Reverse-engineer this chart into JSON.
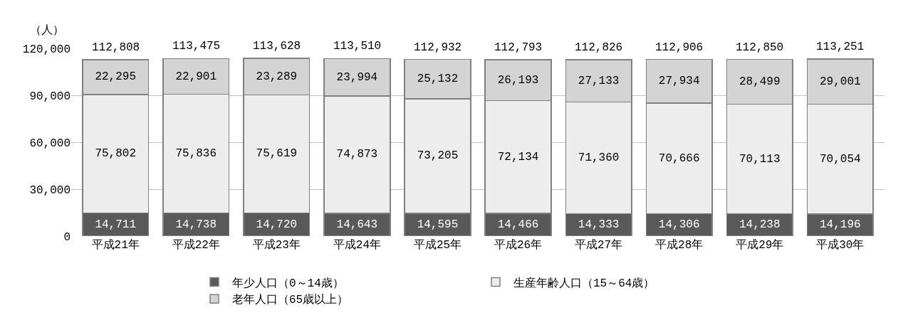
{
  "chart_data": {
    "type": "bar",
    "stacked": true,
    "ylabel": "（人）",
    "categories": [
      "平成21年",
      "平成22年",
      "平成23年",
      "平成24年",
      "平成25年",
      "平成26年",
      "平成27年",
      "平成28年",
      "平成29年",
      "平成30年"
    ],
    "series": [
      {
        "name": "年少人口（0～14歳）",
        "color": "#595959",
        "values": [
          14711,
          14738,
          14720,
          14643,
          14595,
          14466,
          14333,
          14306,
          14238,
          14196
        ],
        "value_labels": [
          "14,711",
          "14,738",
          "14,720",
          "14,643",
          "14,595",
          "14,466",
          "14,333",
          "14,306",
          "14,238",
          "14,196"
        ]
      },
      {
        "name": "生産年齢人口（15～64歳）",
        "color": "#ededed",
        "values": [
          75802,
          75836,
          75619,
          74873,
          73205,
          72134,
          71360,
          70666,
          70113,
          70054
        ],
        "value_labels": [
          "75,802",
          "75,836",
          "75,619",
          "74,873",
          "73,205",
          "72,134",
          "71,360",
          "70,666",
          "70,113",
          "70,054"
        ]
      },
      {
        "name": "老年人口（65歳以上）",
        "color": "#d4d4d4",
        "values": [
          22295,
          22901,
          23289,
          23994,
          25132,
          26193,
          27133,
          27934,
          28499,
          29001
        ],
        "value_labels": [
          "22,295",
          "22,901",
          "23,289",
          "23,994",
          "25,132",
          "26,193",
          "27,133",
          "27,934",
          "28,499",
          "29,001"
        ]
      }
    ],
    "totals": [
      "112,808",
      "113,475",
      "113,628",
      "113,510",
      "112,932",
      "112,793",
      "112,826",
      "112,906",
      "112,850",
      "113,251"
    ],
    "ylim": [
      0,
      120000
    ],
    "yticks": [
      {
        "value": 0,
        "label": "0"
      },
      {
        "value": 30000,
        "label": "30,000"
      },
      {
        "value": 60000,
        "label": "60,000"
      },
      {
        "value": 90000,
        "label": "90,000"
      },
      {
        "value": 120000,
        "label": "120,000"
      }
    ],
    "grid": "y",
    "legend": "bottom"
  }
}
